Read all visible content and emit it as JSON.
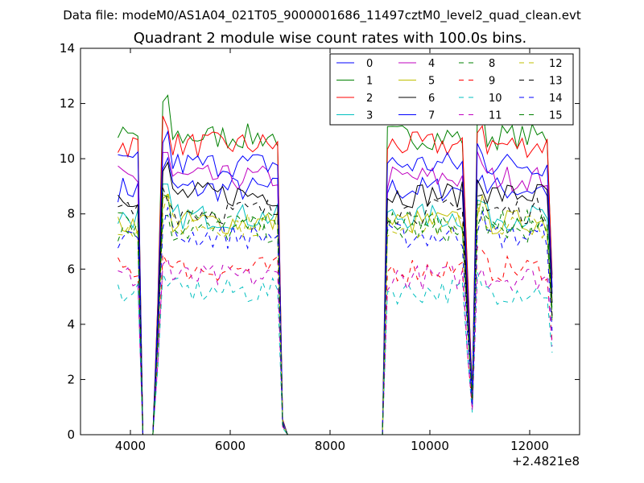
{
  "chart_data": {
    "type": "line",
    "suptitle": "Data file: modeM0/AS1A04_021T05_9000001686_11497cztM0_level2_quad_clean.evt",
    "title": "Quadrant 2 module wise count rates with 100.0s bins.",
    "xlabel": "",
    "ylabel": "",
    "x_offset_label": "+2.4821e8",
    "xlim": [
      3000,
      13000
    ],
    "ylim": [
      0,
      14
    ],
    "xticks": [
      4000,
      6000,
      8000,
      10000,
      12000
    ],
    "yticks": [
      0,
      2,
      4,
      6,
      8,
      10,
      12,
      14
    ],
    "grid": false,
    "legend": {
      "placement": "top-right",
      "columns": 4
    },
    "x": [
      3750,
      3850,
      3950,
      4050,
      4150,
      4250,
      4350,
      4450,
      4550,
      4650,
      4750,
      4850,
      4950,
      5050,
      5150,
      5250,
      5350,
      5450,
      5550,
      5650,
      5750,
      5850,
      5950,
      6050,
      6150,
      6250,
      6350,
      6450,
      6550,
      6650,
      6750,
      6850,
      6950,
      7050,
      7150,
      7250,
      7350,
      7450,
      7550,
      7650,
      7750,
      7850,
      7950,
      8050,
      8150,
      8250,
      8350,
      8450,
      8550,
      8650,
      8750,
      8850,
      8950,
      9050,
      9150,
      9250,
      9350,
      9450,
      9550,
      9650,
      9750,
      9850,
      9950,
      10050,
      10150,
      10250,
      10350,
      10450,
      10550,
      10650,
      10750,
      10850,
      10950,
      11050,
      11150,
      11250,
      11350,
      11450,
      11550,
      11650,
      11750,
      11850,
      11950,
      12050,
      12150,
      12250,
      12350,
      12450
    ],
    "series": [
      {
        "name": "0",
        "color": "#0000ff",
        "dash": "solid",
        "level": 8.9
      },
      {
        "name": "1",
        "color": "#008000",
        "dash": "solid",
        "level": 10.8
      },
      {
        "name": "2",
        "color": "#ff0000",
        "dash": "solid",
        "level": 10.5
      },
      {
        "name": "3",
        "color": "#00bfbf",
        "dash": "solid",
        "level": 7.9
      },
      {
        "name": "4",
        "color": "#bf00bf",
        "dash": "solid",
        "level": 9.3
      },
      {
        "name": "5",
        "color": "#bfbf00",
        "dash": "solid",
        "level": 7.7
      },
      {
        "name": "6",
        "color": "#000000",
        "dash": "solid",
        "level": 8.7
      },
      {
        "name": "7",
        "color": "#0000ff",
        "dash": "solid",
        "level": 9.8
      },
      {
        "name": "8",
        "color": "#008000",
        "dash": "dashed",
        "level": 7.4
      },
      {
        "name": "9",
        "color": "#ff0000",
        "dash": "dashed",
        "level": 6.0
      },
      {
        "name": "10",
        "color": "#00bfbf",
        "dash": "dashed",
        "level": 5.2
      },
      {
        "name": "11",
        "color": "#bf00bf",
        "dash": "dashed",
        "level": 5.7
      },
      {
        "name": "12",
        "color": "#bfbf00",
        "dash": "dashed",
        "level": 7.6
      },
      {
        "name": "13",
        "color": "#000000",
        "dash": "dashed",
        "level": 8.1
      },
      {
        "name": "14",
        "color": "#0000ff",
        "dash": "dashed",
        "level": 7.2
      },
      {
        "name": "15",
        "color": "#008000",
        "dash": "dashed",
        "level": 7.7
      }
    ]
  }
}
